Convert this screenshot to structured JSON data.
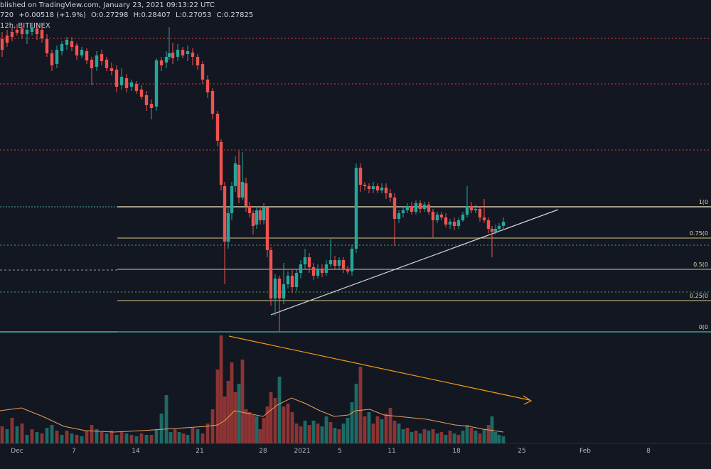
{
  "header": {
    "publish_text": "blished on TradingView.com, January 23, 2021 09:13:22 UTC",
    "last_price": "720",
    "change": "+0.00518 (+1.9%)",
    "open": "O:0.27298",
    "high": "H:0.28407",
    "low": "L:0.27053",
    "close": "C:0.27825",
    "interval": "12h, BITFINEX"
  },
  "colors": {
    "background": "#131722",
    "up": "#26a69a",
    "down": "#ef5350",
    "fib": "#d4c887",
    "resistance": "#e53935",
    "support": "#4caf50",
    "trendline": "#d1d4dc",
    "volume_trend": "#f39c12"
  },
  "chart_data": {
    "type": "candlestick",
    "interval": "12h",
    "exchange": "BITFINEX",
    "x_ticks": [
      "Dec",
      "7",
      "14",
      "21",
      "28",
      "2021",
      "5",
      "11",
      "18",
      "25",
      "Feb",
      "8"
    ],
    "fib_levels": [
      {
        "ratio": 1,
        "label": "1(0"
      },
      {
        "ratio": 0.75,
        "label": "0.75(0"
      },
      {
        "ratio": 0.5,
        "label": "0.5(0"
      },
      {
        "ratio": 0.25,
        "label": "0.25(0"
      },
      {
        "ratio": 0,
        "label": "0(0"
      }
    ],
    "volume": {
      "moving_average": true
    }
  }
}
